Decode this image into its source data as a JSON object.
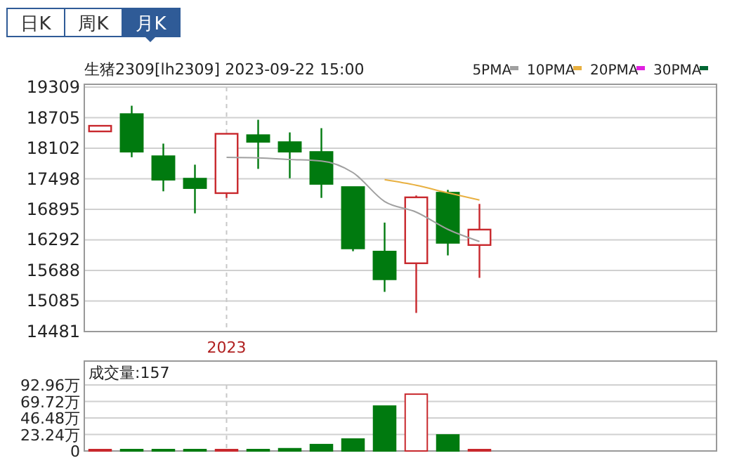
{
  "chart_data": [
    {
      "type": "other",
      "annotations": [
        "日K",
        "周K",
        "月K"
      ]
    },
    {
      "type": "candlestick",
      "title": "生猪2309[lh2309] 2023-09-22 15:00",
      "categories": [
        null,
        null,
        null,
        null,
        "2023",
        null,
        null,
        null,
        null,
        null,
        null,
        null,
        null,
        null,
        null,
        null,
        null,
        null,
        null,
        null
      ],
      "ohlc": [
        [
          18434,
          18545,
          18434,
          18545
        ],
        [
          18775,
          18941,
          17924,
          18035
        ],
        [
          17943,
          18193,
          17251,
          17481
        ],
        [
          17500,
          17777,
          16816,
          17315
        ],
        [
          17215,
          18387,
          17121,
          18387
        ],
        [
          18359,
          18664,
          17694,
          18229
        ],
        [
          18221,
          18414,
          17509,
          18035
        ],
        [
          18027,
          18498,
          17121,
          17398
        ],
        [
          17334,
          17334,
          16068,
          16124
        ],
        [
          16060,
          16633,
          15265,
          15514
        ],
        [
          15830,
          17168,
          14849,
          17132
        ],
        [
          17223,
          17279,
          15985,
          16234
        ],
        [
          16190,
          17002,
          15542,
          16495
        ],
        null,
        null,
        null,
        null,
        null,
        null,
        null
      ],
      "colors": [
        "#c8282d",
        "#007a0f",
        "#007a0f",
        "#007a0f",
        "#c8282d",
        "#007a0f",
        "#007a0f",
        "#007a0f",
        "#007a0f",
        "#007a0f",
        "#c8282d",
        "#007a0f",
        "#c8282d",
        null,
        null,
        null,
        null,
        null,
        null,
        null
      ],
      "series": [
        {
          "name": "5PMA",
          "type": "line",
          "color": "#a0a0a0",
          "values": [
            null,
            null,
            null,
            null,
            17920,
            17910,
            17880,
            17850,
            17620,
            17050,
            16840,
            16500,
            16260,
            null,
            null,
            null,
            null,
            null,
            null,
            null
          ]
        },
        {
          "name": "10PMA",
          "type": "line",
          "color": "#e8b040",
          "values": [
            null,
            null,
            null,
            null,
            null,
            null,
            null,
            null,
            null,
            17480,
            17370,
            17220,
            17080,
            null,
            null,
            null,
            null,
            null,
            null,
            null
          ]
        },
        {
          "name": "20PMA",
          "type": "line",
          "color": "#e020e0",
          "values": [
            null,
            null,
            null,
            null,
            null,
            null,
            null,
            null,
            null,
            null,
            null,
            null,
            null,
            null,
            null,
            null,
            null,
            null,
            null,
            null
          ]
        },
        {
          "name": "30PMA",
          "type": "line",
          "color": "#006633",
          "values": [
            null,
            null,
            null,
            null,
            null,
            null,
            null,
            null,
            null,
            null,
            null,
            null,
            null,
            null,
            null,
            null,
            null,
            null,
            null,
            null
          ]
        }
      ],
      "ylim": [
        14481,
        19309
      ],
      "yticks": [
        14481,
        15085,
        15688,
        16292,
        16895,
        17498,
        18102,
        18705,
        19309
      ],
      "grid": "y",
      "legend": "top right"
    },
    {
      "type": "bar",
      "title": "成交量:157",
      "categories": [
        null,
        null,
        null,
        null,
        null,
        null,
        null,
        null,
        null,
        null,
        null,
        null,
        null,
        null,
        null,
        null,
        null,
        null,
        null,
        null
      ],
      "values": [
        1.3,
        1.3,
        1.3,
        1.3,
        1.3,
        1.3,
        3.2,
        9,
        16.8,
        63.2,
        80,
        22.6,
        0.02,
        null,
        null,
        null,
        null,
        null,
        null,
        null
      ],
      "colors": [
        "#c8282d",
        "#007a0f",
        "#007a0f",
        "#007a0f",
        "#c8282d",
        "#007a0f",
        "#007a0f",
        "#007a0f",
        "#007a0f",
        "#007a0f",
        "#c8282d",
        "#007a0f",
        "#c8282d",
        null,
        null,
        null,
        null,
        null,
        null,
        null
      ],
      "ylim": [
        0,
        92.96
      ],
      "yticks": [
        0,
        {
          "value": 23.24,
          "label": "23.24万"
        },
        {
          "value": 46.48,
          "label": "46.48万"
        },
        {
          "value": 69.72,
          "label": "69.72万"
        },
        {
          "value": 92.96,
          "label": "92.96万"
        }
      ],
      "grid": "y",
      "tick_labels": "y"
    }
  ]
}
